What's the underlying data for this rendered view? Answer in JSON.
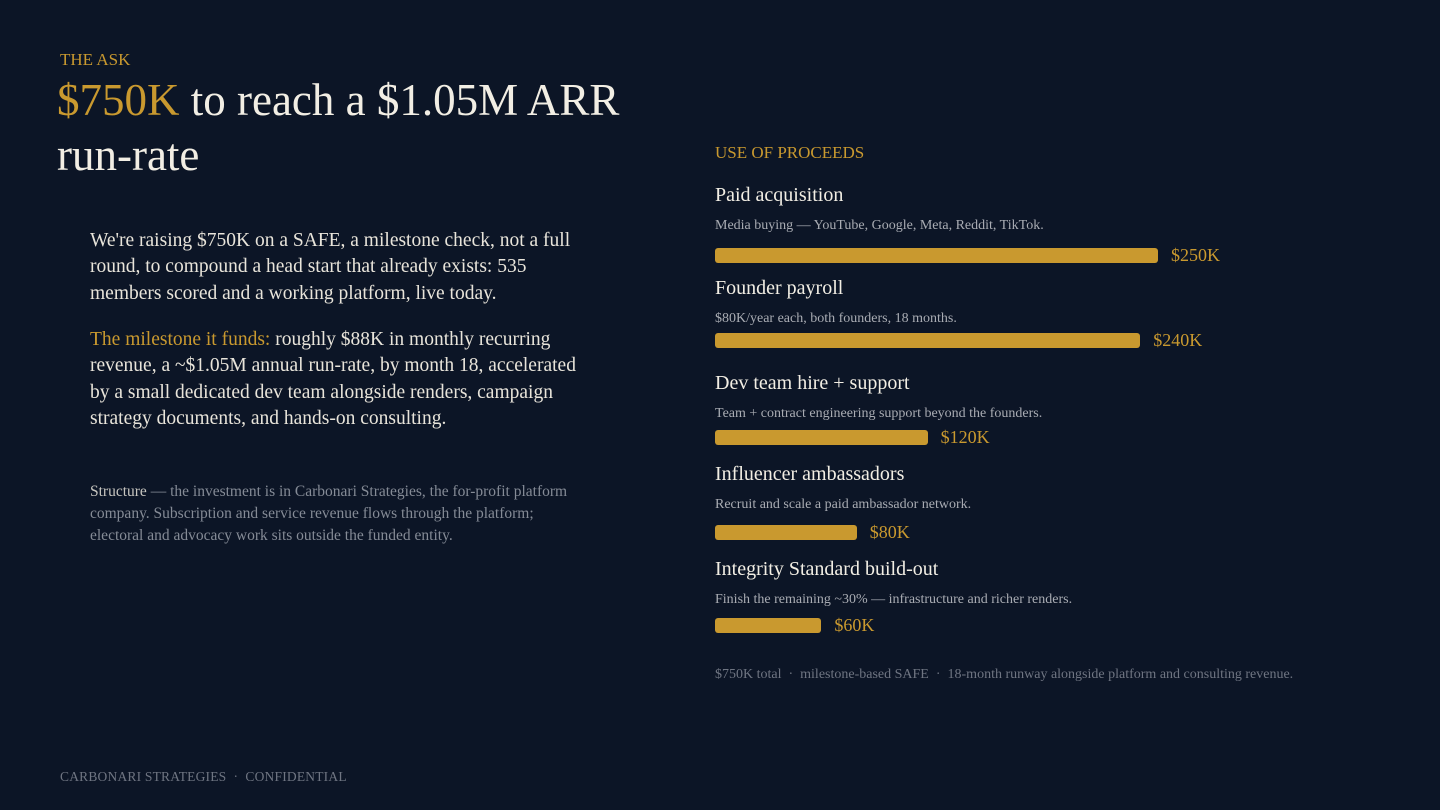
{
  "header": {
    "eyebrow": "THE ASK",
    "title_highlight": "$750K",
    "title_rest": " to reach a $1.05M ARR run-rate"
  },
  "body": {
    "paragraph1": "We're raising $750K on a SAFE, a milestone check, not a full round, to compound a head start that already exists: 535 members scored and a working platform, live today.",
    "paragraph2_highlight": "The milestone it funds:",
    "paragraph2_rest": " roughly $88K in monthly recurring revenue, a ~$1.05M annual run-rate, by month 18, accelerated by a small dedicated dev team alongside renders, campaign strategy documents, and hands-on consulting.",
    "structure_label": "Structure",
    "structure_text": " — the investment is in Carbonari Strategies, the for-profit platform company. Subscription and service revenue flows through the platform; electoral and advocacy work sits outside the funded entity."
  },
  "chart_data": {
    "type": "bar",
    "title": "USE OF PROCEEDS",
    "color": "#c9992f",
    "categories": [
      "Paid acquisition",
      "Founder payroll",
      "Dev team hire + support",
      "Influencer ambassadors",
      "Integrity Standard build-out"
    ],
    "descriptions": [
      "Media buying — YouTube, Google, Meta, Reddit, TikTok.",
      "$80K/year each, both founders, 18 months.",
      "Team + contract engineering support beyond the founders.",
      "Recruit and scale a paid ambassador network.",
      "Finish the remaining ~30% — infrastructure and richer renders."
    ],
    "values": [
      250,
      240,
      120,
      80,
      60
    ],
    "value_labels": [
      "$250K",
      "$240K",
      "$120K",
      "$80K",
      "$60K"
    ],
    "note": "$750K total  ·  milestone-based SAFE  ·  18-month runway alongside platform and consulting revenue."
  },
  "footer": {
    "text": "CARBONARI STRATEGIES  ·  CONFIDENTIAL"
  }
}
